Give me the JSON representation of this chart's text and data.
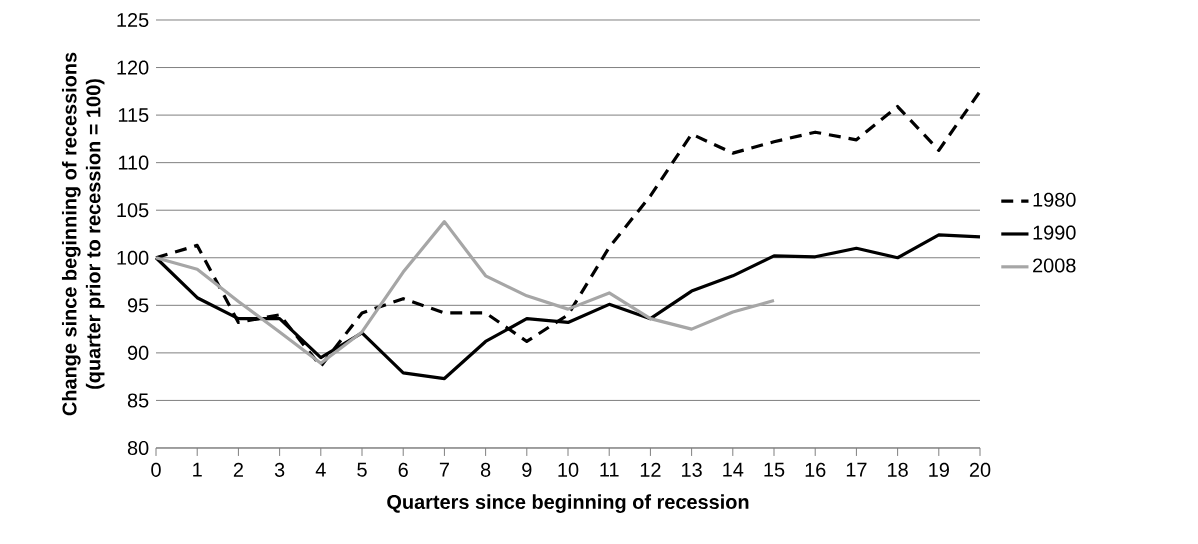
{
  "chart_data": {
    "type": "line",
    "xlabel": "Quarters since beginning of recession",
    "ylabel": "Change since beginning of recessions\n(quarter prior to recession = 100)",
    "x": [
      0,
      1,
      2,
      3,
      4,
      5,
      6,
      7,
      8,
      9,
      10,
      11,
      12,
      13,
      14,
      15,
      16,
      17,
      18,
      19,
      20
    ],
    "xlim": [
      0,
      20
    ],
    "xticks": [
      0,
      1,
      2,
      3,
      4,
      5,
      6,
      7,
      8,
      9,
      10,
      11,
      12,
      13,
      14,
      15,
      16,
      17,
      18,
      19,
      20
    ],
    "ylim": [
      80,
      125
    ],
    "yticks": [
      80,
      85,
      90,
      95,
      100,
      105,
      110,
      115,
      120,
      125
    ],
    "grid": "y",
    "legend": "right",
    "marker": "none",
    "series": [
      {
        "name": "1980",
        "color": "#000000",
        "line_style": "dashed",
        "values": [
          100,
          101.3,
          93.2,
          94,
          88.6,
          94.2,
          95.7,
          94.2,
          94.2,
          91.2,
          94,
          101.1,
          106.5,
          113,
          111,
          112.2,
          113.2,
          112.4,
          115.9,
          111.3,
          117.5
        ]
      },
      {
        "name": "1990",
        "color": "#000000",
        "line_style": "solid",
        "values": [
          100,
          95.8,
          93.6,
          93.6,
          89.5,
          92.1,
          87.9,
          87.3,
          91.2,
          93.6,
          93.2,
          95.1,
          93.6,
          96.5,
          98.1,
          100.2,
          100.1,
          101,
          100,
          102.4,
          102.2
        ]
      },
      {
        "name": "2008",
        "color": "#a6a6a6",
        "line_style": "solid",
        "values": [
          100,
          98.8,
          95.4,
          92.2,
          88.9,
          92.2,
          98.5,
          103.8,
          98.1,
          96,
          94.6,
          96.3,
          93.6,
          92.5,
          94.3,
          95.5,
          null,
          null,
          null,
          null,
          null
        ]
      }
    ]
  }
}
